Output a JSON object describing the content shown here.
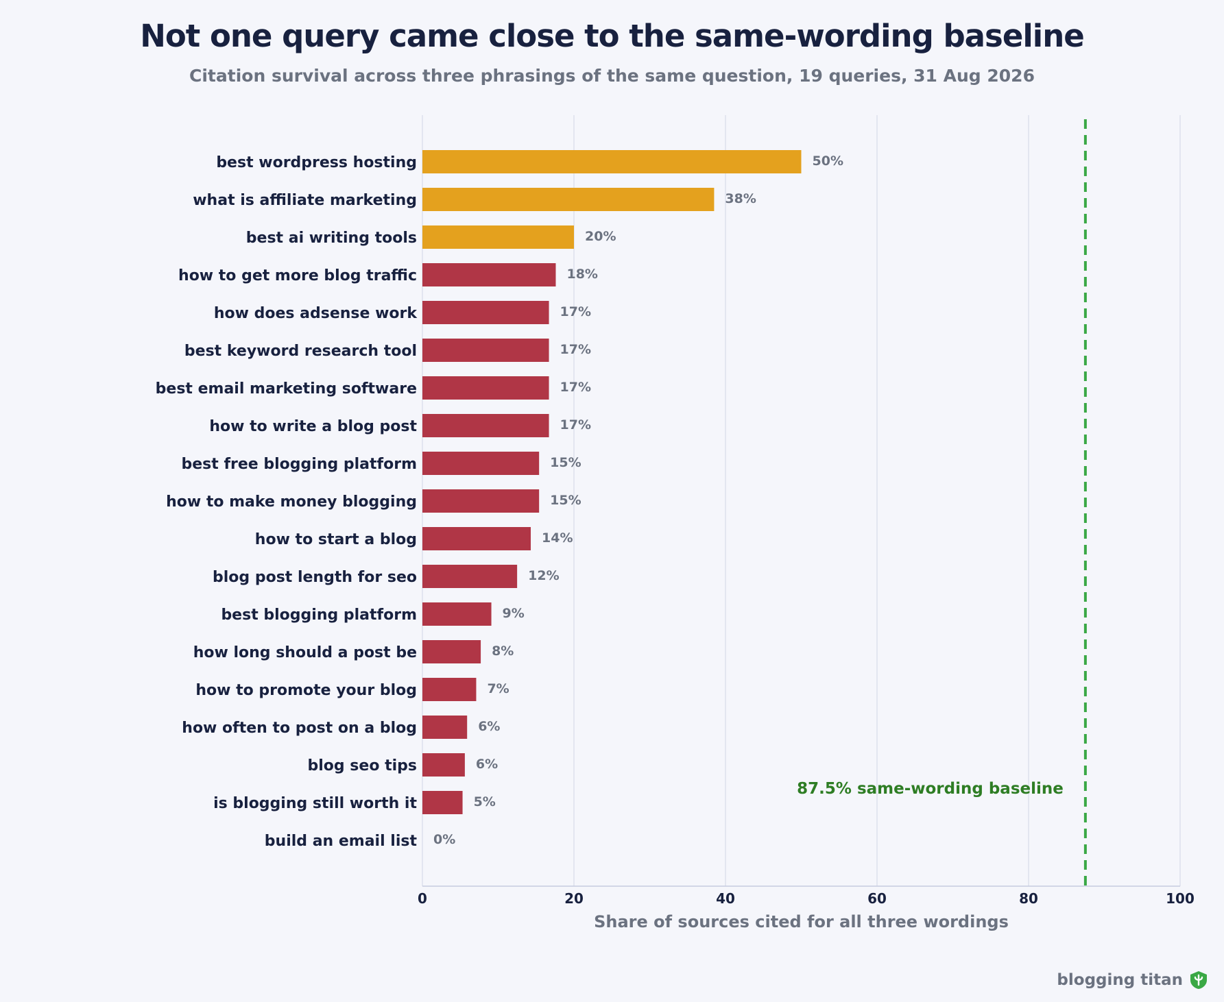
{
  "title": "Not one query came close to the same-wording baseline",
  "subtitle": "Citation survival across three phrasings of the same question, 19 queries, 31 Aug 2026",
  "brand": {
    "name": "blogging titan",
    "icon": "shield-icon"
  },
  "colors": {
    "highlight": "#e4a11e",
    "bar": "#b03646",
    "baseline": "#3aa845",
    "baseline_text": "#2e7d24",
    "grid": "#dde1ec",
    "label": "#18213f",
    "value": "#6b7280"
  },
  "chart_data": {
    "type": "bar",
    "orientation": "horizontal",
    "categories": [
      "best wordpress hosting",
      "what is affiliate marketing",
      "best ai writing tools",
      "how to get more blog traffic",
      "how does adsense work",
      "best keyword research tool",
      "best email marketing software",
      "how to write a blog post",
      "best free blogging platform",
      "how to make money blogging",
      "how to start a blog",
      "blog post length for seo",
      "best blogging platform",
      "how long should a post be",
      "how to promote your blog",
      "how often to post on a blog",
      "blog seo tips",
      "is blogging still worth it",
      "build an email list"
    ],
    "values": [
      50,
      38.5,
      20,
      17.6,
      16.7,
      16.7,
      16.7,
      16.7,
      15.4,
      15.4,
      14.3,
      12.5,
      9.1,
      7.7,
      7.1,
      5.9,
      5.6,
      5.3,
      0
    ],
    "value_labels": [
      "50%",
      "38%",
      "20%",
      "18%",
      "17%",
      "17%",
      "17%",
      "17%",
      "15%",
      "15%",
      "14%",
      "12%",
      "9%",
      "8%",
      "7%",
      "6%",
      "6%",
      "5%",
      "0%"
    ],
    "highlighted_count": 3,
    "xlabel": "Share of sources cited for all three wordings",
    "ylabel": "",
    "xlim": [
      0,
      100
    ],
    "xticks": [
      0,
      20,
      40,
      60,
      80,
      100
    ],
    "grid": true,
    "baseline": {
      "value": 87.5,
      "value_label": "87.5%",
      "label": "same-wording baseline"
    }
  }
}
